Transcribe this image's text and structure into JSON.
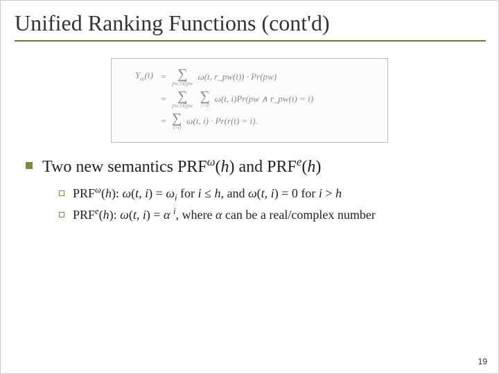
{
  "title": "Unified Ranking Functions (cont'd)",
  "colors": {
    "accent": "#7a8a3a",
    "underline": "#6a7a3a",
    "equation_border": "#bbbbbb",
    "equation_text": "#888888",
    "body_text": "#222222",
    "background": "#ffffff"
  },
  "equations": {
    "lhs": "Υ",
    "lhs_sub": "ω",
    "lhs_arg": "(t)",
    "rows": [
      {
        "lhs_visible": true,
        "sums": [
          {
            "sub": "pw:t∈pw"
          }
        ],
        "rhs": "ω(t, r_pw(t)) · Pr(pw)"
      },
      {
        "lhs_visible": false,
        "sums": [
          {
            "sub": "pw:t∈pw"
          },
          {
            "sub": "i>0"
          }
        ],
        "rhs": "ω(t, i)Pr(pw ∧ r_pw(t) = i)"
      },
      {
        "lhs_visible": false,
        "sums": [
          {
            "sub": "i>0"
          }
        ],
        "rhs": "ω(t, i) · Pr(r(t) = i)."
      }
    ]
  },
  "bullet": {
    "prefix": "Two new semantics PRF",
    "sup1": "ω",
    "mid1": "(",
    "arg": "h",
    "mid2": ") and PRF",
    "sup2": "e",
    "mid3": "(",
    "mid4": ")"
  },
  "subbullets": [
    {
      "s1": "PRF",
      "sup1": "ω",
      "s2": "(",
      "arg1": "h",
      "s3": "): ",
      "om1": "ω",
      "s4": "(",
      "ti": "t, i",
      "s5": ") = ",
      "om2": "ω",
      "sub1": "i",
      "s6": " for ",
      "i1": "i",
      "le": " ≤ ",
      "h1": "h",
      "s7": ", and ",
      "om3": "ω",
      "s8": "(",
      "ti2": "t, i",
      "s9": ") = 0 for ",
      "i2": "i",
      "gt": " > ",
      "h2": "h"
    },
    {
      "s1": "PRF",
      "sup1": "e",
      "s2": "(",
      "arg1": "h",
      "s3": "): ",
      "om1": "ω",
      "s4": "(",
      "ti": "t, i",
      "s5": ") = ",
      "al": "α",
      "s6": " ",
      "expi": "i",
      "s7": ", where ",
      "al2": "α",
      "s8": " can be a real/complex number"
    }
  ],
  "page_number": "19"
}
